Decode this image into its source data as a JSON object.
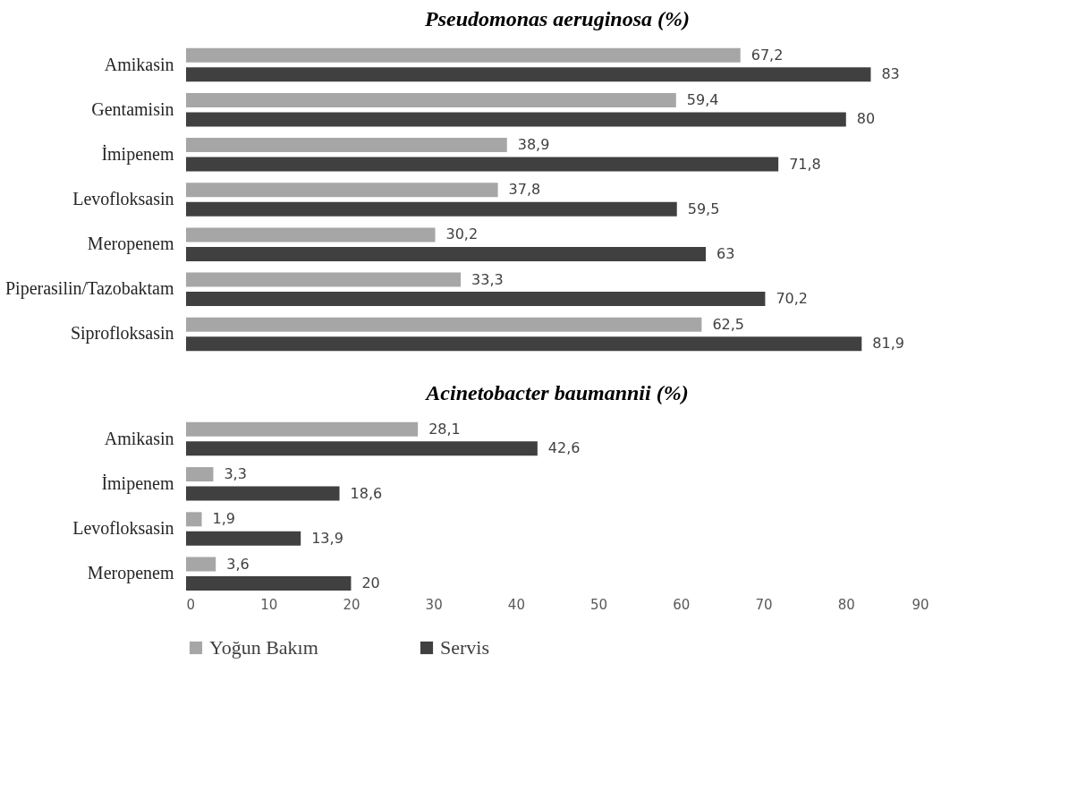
{
  "chart_data": [
    {
      "type": "bar",
      "orientation": "horizontal",
      "title": "Pseudomonas aeruginosa (%)",
      "categories": [
        "Amikasin",
        "Gentamisin",
        "İmipenem",
        "Levofloksasin",
        "Meropenem",
        "Piperasilin/Tazobaktam",
        "Siprofloksasin"
      ],
      "series": [
        {
          "name": "Yoğun Bakım",
          "color": "#a6a6a6",
          "values": [
            67.2,
            59.4,
            38.9,
            37.8,
            30.2,
            33.3,
            62.5
          ],
          "value_labels": [
            "67,2",
            "59,4",
            "38,9",
            "37,8",
            "30,2",
            "33,3",
            "62,5"
          ]
        },
        {
          "name": "Servis",
          "color": "#404040",
          "values": [
            83,
            80,
            71.8,
            59.5,
            63,
            70.2,
            81.9
          ],
          "value_labels": [
            "83",
            "80",
            "71,8",
            "59,5",
            "63",
            "70,2",
            "81,9"
          ]
        }
      ],
      "xlim": [
        0,
        90
      ],
      "tick_labels": "y",
      "grid": false,
      "legend": "bottom"
    },
    {
      "type": "bar",
      "orientation": "horizontal",
      "title": "Acinetobacter baumannii (%)",
      "categories": [
        "Amikasin",
        "İmipenem",
        "Levofloksasin",
        "Meropenem"
      ],
      "series": [
        {
          "name": "Yoğun Bakım",
          "color": "#a6a6a6",
          "values": [
            28.1,
            3.3,
            1.9,
            3.6
          ],
          "value_labels": [
            "28,1",
            "3,3",
            "1,9",
            "3,6"
          ]
        },
        {
          "name": "Servis",
          "color": "#404040",
          "values": [
            42.6,
            18.6,
            13.9,
            20
          ],
          "value_labels": [
            "42,6",
            "18,6",
            "13,9",
            "20"
          ]
        }
      ],
      "xlim": [
        0,
        90
      ],
      "xticks": [
        0,
        10,
        20,
        30,
        40,
        50,
        60,
        70,
        80,
        90
      ],
      "grid": false,
      "legend": "bottom"
    }
  ]
}
